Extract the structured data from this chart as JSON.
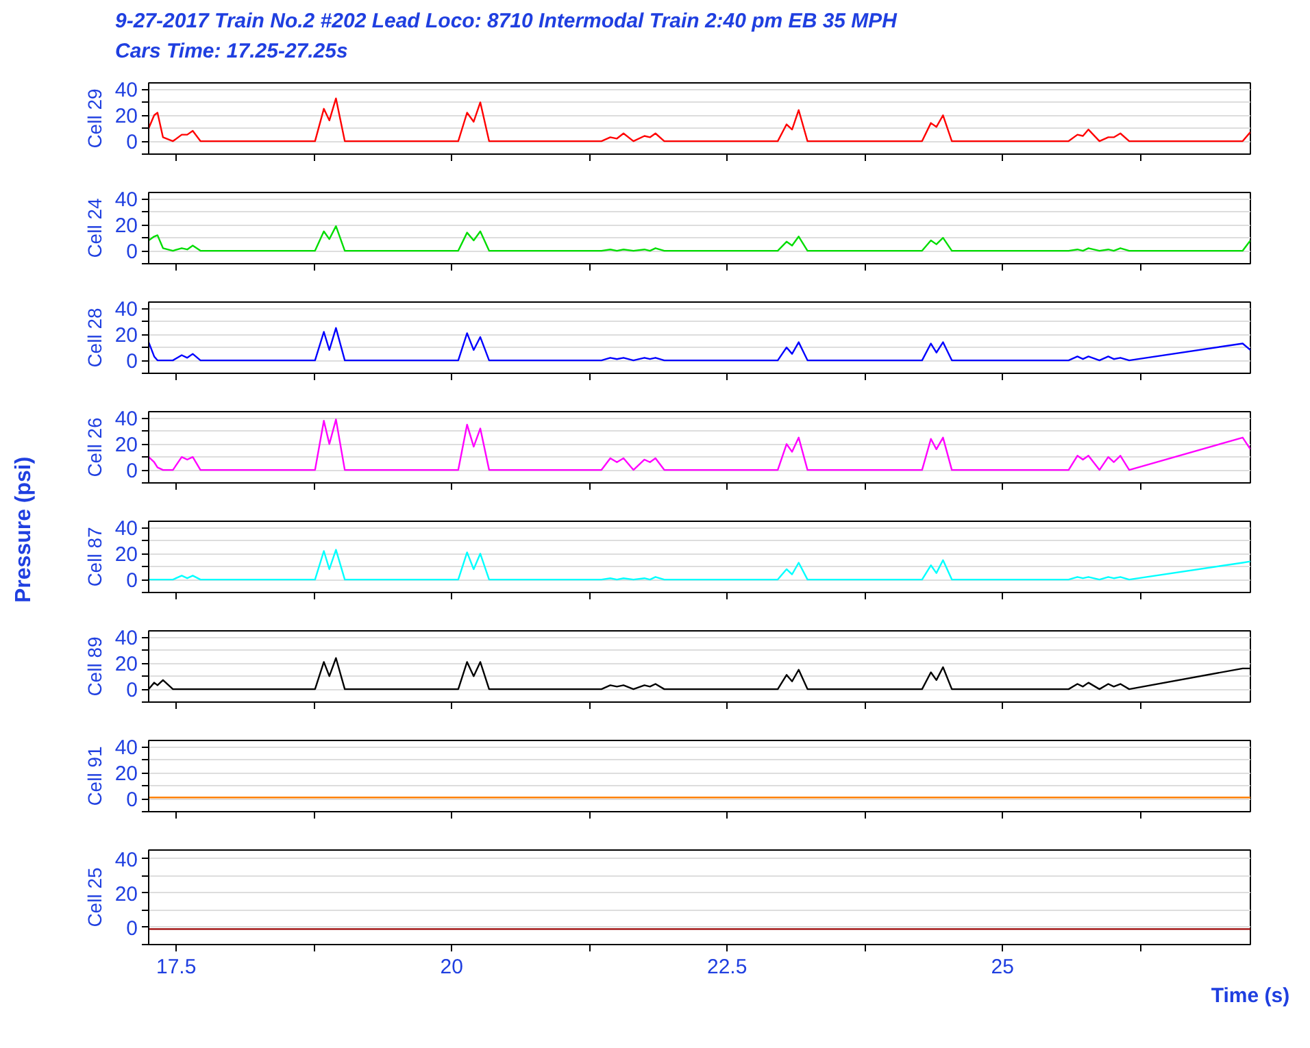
{
  "chart_data": [
    {
      "type": "line",
      "title": "9-27-2017 Train No.2 #202 Lead Loco: 8710 Intermodal Train 2:40 pm EB 35 MPH",
      "subtitle": "Cars Time: 17.25-27.25s",
      "annotations": [
        "Pressure (psi)"
      ],
      "ylabel": "Cell 29",
      "xlim": [
        17.25,
        27.25
      ],
      "ylim": [
        -10,
        45
      ],
      "xticks": [
        17.5,
        {
          "value": 18.75,
          "label": null
        },
        20,
        {
          "value": 21.25,
          "label": null
        },
        22.5,
        {
          "value": 23.75,
          "label": null
        },
        25,
        {
          "value": 26.25,
          "label": null
        }
      ],
      "yticks": [
        {
          "value": -10,
          "label": null
        },
        0,
        {
          "value": 10,
          "label": null
        },
        20,
        {
          "value": 30,
          "label": null
        },
        40
      ],
      "grid": "y",
      "tick_labels": "y",
      "x": [
        17.25,
        17.3,
        17.33,
        17.38,
        17.47,
        17.55,
        17.6,
        17.65,
        17.72,
        18.76,
        18.84,
        18.89,
        18.95,
        19.03,
        20.06,
        20.14,
        20.2,
        20.26,
        20.34,
        21.36,
        21.44,
        21.5,
        21.56,
        21.65,
        21.75,
        21.8,
        21.85,
        21.93,
        22.96,
        23.04,
        23.09,
        23.15,
        23.23,
        24.27,
        24.35,
        24.4,
        24.46,
        24.54,
        25.6,
        25.68,
        25.73,
        25.78,
        25.88,
        25.96,
        26.01,
        26.07,
        26.15,
        27.18,
        27.25
      ],
      "series": [
        {
          "color": "#ff0000",
          "values": [
            10,
            20,
            22,
            3,
            0,
            5,
            5,
            8,
            0,
            0,
            25,
            16,
            33,
            0,
            0,
            22,
            15,
            30,
            0,
            0,
            3,
            2,
            6,
            0,
            4,
            3,
            6,
            0,
            0,
            13,
            9,
            24,
            0,
            0,
            14,
            11,
            20,
            0,
            0,
            5,
            4,
            9,
            0,
            3,
            3,
            6,
            0,
            0,
            7
          ]
        }
      ]
    },
    {
      "type": "line",
      "ylabel": "Cell 24",
      "xlim": [
        17.25,
        27.25
      ],
      "ylim": [
        -10,
        45
      ],
      "xticks": [
        17.5,
        {
          "value": 18.75,
          "label": null
        },
        20,
        {
          "value": 21.25,
          "label": null
        },
        22.5,
        {
          "value": 23.75,
          "label": null
        },
        25,
        {
          "value": 26.25,
          "label": null
        }
      ],
      "yticks": [
        {
          "value": -10,
          "label": null
        },
        0,
        {
          "value": 10,
          "label": null
        },
        20,
        {
          "value": 30,
          "label": null
        },
        40
      ],
      "grid": "y",
      "tick_labels": "y",
      "x": [
        17.25,
        17.3,
        17.33,
        17.38,
        17.47,
        17.55,
        17.6,
        17.65,
        17.72,
        18.76,
        18.84,
        18.89,
        18.95,
        19.03,
        20.06,
        20.14,
        20.2,
        20.26,
        20.34,
        21.36,
        21.44,
        21.5,
        21.56,
        21.65,
        21.75,
        21.8,
        21.85,
        21.93,
        22.96,
        23.04,
        23.09,
        23.15,
        23.23,
        24.27,
        24.35,
        24.4,
        24.46,
        24.54,
        25.6,
        25.68,
        25.73,
        25.78,
        25.88,
        25.96,
        26.01,
        26.07,
        26.15,
        27.18,
        27.25
      ],
      "series": [
        {
          "color": "#00dd00",
          "values": [
            8,
            11,
            12,
            2,
            0,
            2,
            1,
            4,
            0,
            0,
            15,
            9,
            19,
            0,
            0,
            14,
            8,
            15,
            0,
            0,
            1,
            0,
            1,
            0,
            1,
            0,
            2,
            0,
            0,
            7,
            4,
            11,
            0,
            0,
            8,
            5,
            10,
            0,
            0,
            1,
            0,
            2,
            0,
            1,
            0,
            2,
            0,
            0,
            8
          ]
        }
      ]
    },
    {
      "type": "line",
      "ylabel": "Cell 28",
      "xlim": [
        17.25,
        27.25
      ],
      "ylim": [
        -10,
        45
      ],
      "xticks": [
        17.5,
        {
          "value": 18.75,
          "label": null
        },
        20,
        {
          "value": 21.25,
          "label": null
        },
        22.5,
        {
          "value": 23.75,
          "label": null
        },
        25,
        {
          "value": 26.25,
          "label": null
        }
      ],
      "yticks": [
        {
          "value": -10,
          "label": null
        },
        0,
        {
          "value": 10,
          "label": null
        },
        20,
        {
          "value": 30,
          "label": null
        },
        40
      ],
      "grid": "y",
      "tick_labels": "y",
      "x": [
        17.25,
        17.3,
        17.33,
        17.38,
        17.47,
        17.55,
        17.6,
        17.65,
        17.72,
        18.76,
        18.84,
        18.89,
        18.95,
        19.03,
        20.06,
        20.14,
        20.2,
        20.26,
        20.34,
        21.36,
        21.44,
        21.5,
        21.56,
        21.65,
        21.75,
        21.8,
        21.85,
        21.93,
        22.96,
        23.04,
        23.09,
        23.15,
        23.23,
        24.27,
        24.35,
        24.4,
        24.46,
        24.54,
        25.6,
        25.68,
        25.73,
        25.78,
        25.88,
        25.96,
        26.01,
        26.07,
        26.15,
        27.18,
        27.25
      ],
      "series": [
        {
          "color": "#0000ff",
          "values": [
            14,
            3,
            0,
            0,
            0,
            4,
            2,
            5,
            0,
            0,
            22,
            8,
            25,
            0,
            0,
            21,
            8,
            18,
            0,
            0,
            2,
            1,
            2,
            0,
            2,
            1,
            2,
            0,
            0,
            10,
            5,
            14,
            0,
            0,
            13,
            6,
            14,
            0,
            0,
            3,
            1,
            3,
            0,
            3,
            1,
            2,
            0,
            13,
            8
          ]
        }
      ]
    },
    {
      "type": "line",
      "ylabel": "Cell 26",
      "xlim": [
        17.25,
        27.25
      ],
      "ylim": [
        -10,
        45
      ],
      "xticks": [
        17.5,
        {
          "value": 18.75,
          "label": null
        },
        20,
        {
          "value": 21.25,
          "label": null
        },
        22.5,
        {
          "value": 23.75,
          "label": null
        },
        25,
        {
          "value": 26.25,
          "label": null
        }
      ],
      "yticks": [
        {
          "value": -10,
          "label": null
        },
        0,
        {
          "value": 10,
          "label": null
        },
        20,
        {
          "value": 30,
          "label": null
        },
        40
      ],
      "grid": "y",
      "tick_labels": "y",
      "x": [
        17.25,
        17.3,
        17.33,
        17.38,
        17.47,
        17.55,
        17.6,
        17.65,
        17.72,
        18.76,
        18.84,
        18.89,
        18.95,
        19.03,
        20.06,
        20.14,
        20.2,
        20.26,
        20.34,
        21.36,
        21.44,
        21.5,
        21.56,
        21.65,
        21.75,
        21.8,
        21.85,
        21.93,
        22.96,
        23.04,
        23.09,
        23.15,
        23.23,
        24.27,
        24.35,
        24.4,
        24.46,
        24.54,
        25.6,
        25.68,
        25.73,
        25.78,
        25.88,
        25.96,
        26.01,
        26.07,
        26.15,
        27.18,
        27.25
      ],
      "series": [
        {
          "color": "#ff00ff",
          "values": [
            10,
            6,
            2,
            0,
            0,
            10,
            8,
            10,
            0,
            0,
            38,
            20,
            39,
            0,
            0,
            35,
            18,
            32,
            0,
            0,
            9,
            6,
            9,
            0,
            8,
            6,
            9,
            0,
            0,
            20,
            14,
            25,
            0,
            0,
            24,
            16,
            25,
            0,
            0,
            11,
            8,
            11,
            0,
            10,
            6,
            11,
            0,
            25,
            16
          ]
        }
      ]
    },
    {
      "type": "line",
      "ylabel": "Cell 87",
      "xlim": [
        17.25,
        27.25
      ],
      "ylim": [
        -10,
        45
      ],
      "xticks": [
        17.5,
        {
          "value": 18.75,
          "label": null
        },
        20,
        {
          "value": 21.25,
          "label": null
        },
        22.5,
        {
          "value": 23.75,
          "label": null
        },
        25,
        {
          "value": 26.25,
          "label": null
        }
      ],
      "yticks": [
        {
          "value": -10,
          "label": null
        },
        0,
        {
          "value": 10,
          "label": null
        },
        20,
        {
          "value": 30,
          "label": null
        },
        40
      ],
      "grid": "y",
      "tick_labels": "y",
      "x": [
        17.25,
        17.3,
        17.33,
        17.38,
        17.47,
        17.55,
        17.6,
        17.65,
        17.72,
        18.76,
        18.84,
        18.89,
        18.95,
        19.03,
        20.06,
        20.14,
        20.2,
        20.26,
        20.34,
        21.36,
        21.44,
        21.5,
        21.56,
        21.65,
        21.75,
        21.8,
        21.85,
        21.93,
        22.96,
        23.04,
        23.09,
        23.15,
        23.23,
        24.27,
        24.35,
        24.4,
        24.46,
        24.54,
        25.6,
        25.68,
        25.73,
        25.78,
        25.88,
        25.96,
        26.01,
        26.07,
        26.15,
        27.18,
        27.25
      ],
      "series": [
        {
          "color": "#00ffff",
          "values": [
            0,
            0,
            0,
            0,
            0,
            3,
            1,
            3,
            0,
            0,
            22,
            8,
            23,
            0,
            0,
            21,
            8,
            20,
            0,
            0,
            1,
            0,
            1,
            0,
            1,
            0,
            2,
            0,
            0,
            8,
            4,
            13,
            0,
            0,
            11,
            5,
            15,
            0,
            0,
            2,
            1,
            2,
            0,
            2,
            1,
            2,
            0,
            13,
            14
          ]
        }
      ]
    },
    {
      "type": "line",
      "ylabel": "Cell 89",
      "xlim": [
        17.25,
        27.25
      ],
      "ylim": [
        -10,
        45
      ],
      "xticks": [
        17.5,
        {
          "value": 18.75,
          "label": null
        },
        20,
        {
          "value": 21.25,
          "label": null
        },
        22.5,
        {
          "value": 23.75,
          "label": null
        },
        25,
        {
          "value": 26.25,
          "label": null
        }
      ],
      "yticks": [
        {
          "value": -10,
          "label": null
        },
        0,
        {
          "value": 10,
          "label": null
        },
        20,
        {
          "value": 30,
          "label": null
        },
        40
      ],
      "grid": "y",
      "tick_labels": "y",
      "x": [
        17.25,
        17.3,
        17.33,
        17.38,
        17.47,
        17.55,
        17.6,
        17.65,
        17.72,
        18.76,
        18.84,
        18.89,
        18.95,
        19.03,
        20.06,
        20.14,
        20.2,
        20.26,
        20.34,
        21.36,
        21.44,
        21.5,
        21.56,
        21.65,
        21.75,
        21.8,
        21.85,
        21.93,
        22.96,
        23.04,
        23.09,
        23.15,
        23.23,
        24.27,
        24.35,
        24.4,
        24.46,
        24.54,
        25.6,
        25.68,
        25.73,
        25.78,
        25.88,
        25.96,
        26.01,
        26.07,
        26.15,
        27.18,
        27.25
      ],
      "series": [
        {
          "color": "#000000",
          "values": [
            0,
            5,
            3,
            7,
            0,
            0,
            0,
            0,
            0,
            0,
            21,
            10,
            24,
            0,
            0,
            21,
            10,
            21,
            0,
            0,
            3,
            2,
            3,
            0,
            3,
            2,
            4,
            0,
            0,
            11,
            6,
            15,
            0,
            0,
            13,
            7,
            17,
            0,
            0,
            4,
            2,
            5,
            0,
            4,
            2,
            4,
            0,
            16,
            16
          ]
        }
      ]
    },
    {
      "type": "line",
      "ylabel": "Cell 91",
      "xlim": [
        17.25,
        27.25
      ],
      "ylim": [
        -10,
        45
      ],
      "xticks": [
        17.5,
        {
          "value": 18.75,
          "label": null
        },
        20,
        {
          "value": 21.25,
          "label": null
        },
        22.5,
        {
          "value": 23.75,
          "label": null
        },
        25,
        {
          "value": 26.25,
          "label": null
        }
      ],
      "yticks": [
        {
          "value": -10,
          "label": null
        },
        0,
        {
          "value": 10,
          "label": null
        },
        20,
        {
          "value": 30,
          "label": null
        },
        40
      ],
      "grid": "y",
      "tick_labels": "y",
      "x": [
        17.25,
        27.25
      ],
      "series": [
        {
          "color": "#ff8000",
          "values": [
            1,
            1
          ]
        }
      ]
    },
    {
      "type": "line",
      "ylabel": "Cell 25",
      "xlabel": "Time (s)",
      "xlim": [
        17.25,
        27.25
      ],
      "ylim": [
        -10,
        45
      ],
      "xticks": [
        17.5,
        {
          "value": 18.75,
          "label": null
        },
        20,
        {
          "value": 21.25,
          "label": null
        },
        22.5,
        {
          "value": 23.75,
          "label": null
        },
        25,
        {
          "value": 26.25,
          "label": null
        }
      ],
      "yticks": [
        {
          "value": -10,
          "label": null
        },
        0,
        {
          "value": 10,
          "label": null
        },
        20,
        {
          "value": 30,
          "label": null
        },
        40
      ],
      "grid": "y",
      "x": [
        17.25,
        27.25
      ],
      "series": [
        {
          "color": "#990000",
          "values": [
            -1,
            -1
          ]
        }
      ]
    }
  ]
}
